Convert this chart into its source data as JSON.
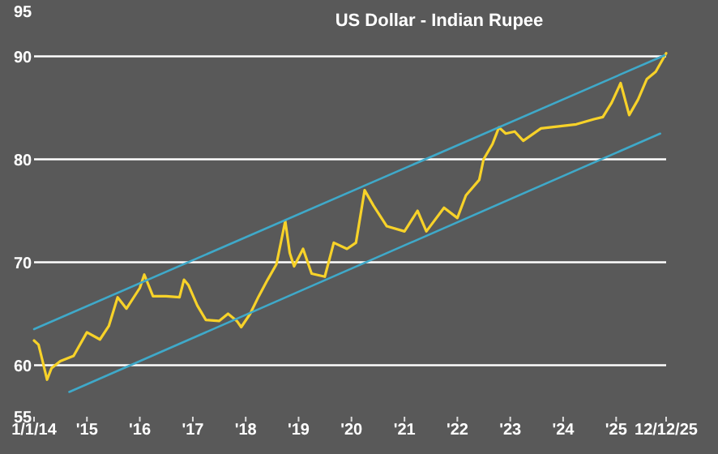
{
  "chart_data": {
    "type": "line",
    "title": "US Dollar - Indian Rupee",
    "xlim": [
      "2014-01-01",
      "2025-12-12"
    ],
    "xticks": [
      {
        "value": "2014-01-01",
        "label": "1/1/14"
      },
      {
        "value": "2015-01-01",
        "label": "'15"
      },
      {
        "value": "2016-01-01",
        "label": "'16"
      },
      {
        "value": "2017-01-01",
        "label": "'17"
      },
      {
        "value": "2018-01-01",
        "label": "'18"
      },
      {
        "value": "2019-01-01",
        "label": "'19"
      },
      {
        "value": "2020-01-01",
        "label": "'20"
      },
      {
        "value": "2021-01-01",
        "label": "'21"
      },
      {
        "value": "2022-01-01",
        "label": "'22"
      },
      {
        "value": "2023-01-01",
        "label": "'23"
      },
      {
        "value": "2024-01-01",
        "label": "'24"
      },
      {
        "value": "2025-01-01",
        "label": "'25"
      },
      {
        "value": "2025-12-12",
        "label": "12/12/25"
      }
    ],
    "ylim": [
      55,
      95
    ],
    "yticks": [
      55,
      60,
      70,
      80,
      90,
      95
    ],
    "grid": "y",
    "marker": "none",
    "line_style": "solid",
    "series": [
      {
        "color": "#f7d229",
        "x": [
          "2014-01-01",
          "2014-02-01",
          "2014-03-01",
          "2014-04-01",
          "2014-05-01",
          "2014-07-01",
          "2014-10-01",
          "2015-01-01",
          "2015-04-01",
          "2015-06-01",
          "2015-08-01",
          "2015-10-01",
          "2016-01-01",
          "2016-02-01",
          "2016-04-01",
          "2016-07-01",
          "2016-10-01",
          "2016-11-01",
          "2016-12-01",
          "2017-02-01",
          "2017-04-01",
          "2017-07-01",
          "2017-09-01",
          "2017-11-01",
          "2017-12-01",
          "2018-02-01",
          "2018-04-01",
          "2018-06-01",
          "2018-08-01",
          "2018-10-01",
          "2018-11-01",
          "2018-12-01",
          "2019-02-01",
          "2019-04-01",
          "2019-07-01",
          "2019-09-01",
          "2019-12-01",
          "2020-02-01",
          "2020-04-01",
          "2020-06-01",
          "2020-09-01",
          "2021-01-01",
          "2021-04-01",
          "2021-06-01",
          "2021-10-01",
          "2022-01-01",
          "2022-03-01",
          "2022-06-01",
          "2022-07-01",
          "2022-09-01",
          "2022-10-15",
          "2022-12-01",
          "2023-02-01",
          "2023-04-01",
          "2023-08-01",
          "2023-12-01",
          "2024-04-01",
          "2024-08-01",
          "2024-10-01",
          "2024-12-01",
          "2025-02-01",
          "2025-04-01",
          "2025-06-01",
          "2025-08-01",
          "2025-10-01",
          "2025-12-12"
        ],
        "values": [
          62.4,
          62.0,
          60.4,
          58.6,
          59.7,
          60.4,
          60.9,
          63.2,
          62.5,
          63.8,
          66.6,
          65.5,
          67.5,
          68.8,
          66.7,
          66.7,
          66.6,
          68.3,
          67.8,
          65.8,
          64.4,
          64.3,
          65.0,
          64.3,
          63.7,
          65.0,
          66.7,
          68.3,
          69.8,
          74.0,
          70.9,
          69.6,
          71.3,
          68.9,
          68.6,
          71.9,
          71.3,
          71.9,
          77.0,
          75.5,
          73.5,
          73.0,
          75.0,
          73.0,
          75.3,
          74.3,
          76.5,
          78.0,
          80.0,
          81.5,
          83.1,
          82.5,
          82.7,
          81.8,
          83.0,
          83.2,
          83.4,
          83.9,
          84.1,
          85.5,
          87.4,
          84.3,
          85.8,
          87.8,
          88.5,
          90.3
        ]
      },
      {
        "type": "line",
        "color": "#3fa9c9",
        "x": [
          "2014-01-01",
          "2025-12-01"
        ],
        "values": [
          63.5,
          90.1
        ]
      },
      {
        "type": "line",
        "color": "#3fa9c9",
        "x": [
          "2014-09-01",
          "2025-11-01"
        ],
        "values": [
          57.4,
          82.5
        ]
      }
    ]
  }
}
